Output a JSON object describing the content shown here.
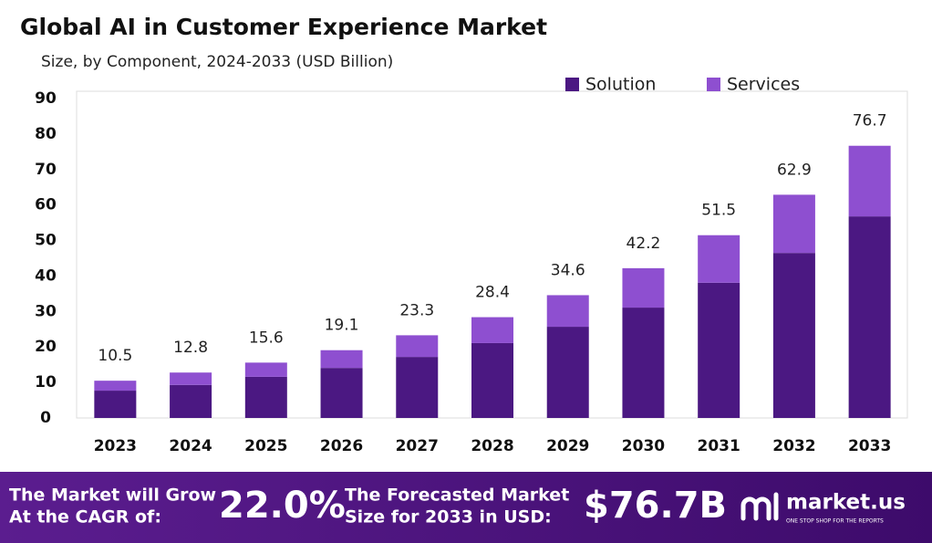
{
  "chart_data": {
    "type": "stacked_bar",
    "title": "Global AI in Customer Experience Market",
    "subtitle": "Size, by Component, 2024-2033 (USD Billion)",
    "categories": [
      "2023",
      "2024",
      "2025",
      "2026",
      "2027",
      "2028",
      "2029",
      "2030",
      "2031",
      "2032",
      "2033"
    ],
    "series": [
      {
        "name": "Solution",
        "color": "#4b1882",
        "values": [
          7.7,
          9.3,
          11.6,
          14.1,
          17.2,
          21.1,
          25.7,
          31.1,
          38.1,
          46.5,
          56.8
        ]
      },
      {
        "name": "Services",
        "color": "#8e4fd0",
        "values": [
          2.8,
          3.5,
          4.0,
          5.0,
          6.1,
          7.3,
          8.9,
          11.1,
          13.4,
          16.4,
          19.9
        ]
      }
    ],
    "totals": [
      10.5,
      12.8,
      15.6,
      19.1,
      23.3,
      28.4,
      34.6,
      42.2,
      51.5,
      62.9,
      76.7
    ],
    "ylim": [
      0,
      90
    ],
    "yticks": [
      0,
      10,
      20,
      30,
      40,
      50,
      60,
      70,
      80,
      90
    ],
    "legend": "top-right"
  },
  "footer": {
    "cagr_text": [
      "The Market will Grow",
      "At the CAGR of:"
    ],
    "cagr_value": "22.0%",
    "forecast_text": [
      "The Forecasted Market",
      "Size for 2033 in USD:"
    ],
    "forecast_value": "$76.7B",
    "brand": "market.us",
    "tagline": "ONE STOP SHOP FOR THE REPORTS"
  }
}
